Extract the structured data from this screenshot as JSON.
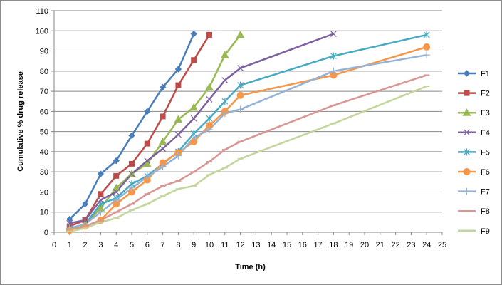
{
  "chart_data": {
    "type": "line",
    "xlabel": "Time (h)",
    "ylabel": "Cumulative % drug release",
    "xlim": [
      0,
      25
    ],
    "ylim": [
      0,
      110
    ],
    "xticks": [
      "0",
      "1",
      "2",
      "3",
      "4",
      "5",
      "6",
      "7",
      "8",
      "9",
      "10",
      "11",
      "12",
      "13",
      "14",
      "15",
      "16",
      "17",
      "18",
      "19",
      "20",
      "21",
      "22",
      "23",
      "24",
      "25"
    ],
    "yticks": [
      "0",
      "10",
      "20",
      "30",
      "40",
      "50",
      "60",
      "70",
      "80",
      "90",
      "100",
      "110"
    ],
    "grid": "horizontal",
    "legend_position": "right",
    "series": [
      {
        "name": "F1",
        "color": "#4a7ebb",
        "marker": "diamond",
        "points": [
          [
            1,
            6.5
          ],
          [
            2,
            14
          ],
          [
            3,
            29
          ],
          [
            4,
            35.5
          ],
          [
            5,
            48
          ],
          [
            6,
            60
          ],
          [
            7,
            72
          ],
          [
            8,
            81
          ],
          [
            9,
            98.5
          ]
        ]
      },
      {
        "name": "F2",
        "color": "#be4b48",
        "marker": "square",
        "points": [
          [
            1,
            3
          ],
          [
            2,
            6
          ],
          [
            3,
            19
          ],
          [
            4,
            28
          ],
          [
            5,
            34
          ],
          [
            6,
            44
          ],
          [
            7,
            57.5
          ],
          [
            8,
            73
          ],
          [
            9,
            85.5
          ],
          [
            10,
            98
          ]
        ]
      },
      {
        "name": "F3",
        "color": "#98b954",
        "marker": "triangle",
        "points": [
          [
            1,
            1.5
          ],
          [
            2,
            4
          ],
          [
            3,
            12
          ],
          [
            4,
            22
          ],
          [
            5,
            29
          ],
          [
            6,
            34
          ],
          [
            7,
            45
          ],
          [
            8,
            56
          ],
          [
            9,
            62
          ],
          [
            10,
            72
          ],
          [
            11,
            88
          ],
          [
            12,
            98
          ]
        ]
      },
      {
        "name": "F4",
        "color": "#7d60a0",
        "marker": "x",
        "points": [
          [
            1,
            4.5
          ],
          [
            2,
            6
          ],
          [
            3,
            16
          ],
          [
            4,
            20
          ],
          [
            5,
            29
          ],
          [
            6,
            35.5
          ],
          [
            7,
            41.5
          ],
          [
            8,
            48.5
          ],
          [
            9,
            56.5
          ],
          [
            10,
            66
          ],
          [
            11,
            75.5
          ],
          [
            12,
            81.5
          ],
          [
            18,
            98.5
          ]
        ]
      },
      {
        "name": "F5",
        "color": "#46aac5",
        "marker": "asterisk",
        "points": [
          [
            1,
            2
          ],
          [
            2,
            4
          ],
          [
            3,
            14
          ],
          [
            4,
            17
          ],
          [
            5,
            24
          ],
          [
            6,
            28
          ],
          [
            7,
            34
          ],
          [
            8,
            40
          ],
          [
            9,
            49
          ],
          [
            10,
            56.5
          ],
          [
            11,
            65
          ],
          [
            12,
            73
          ],
          [
            18,
            87.5
          ],
          [
            24,
            98
          ]
        ]
      },
      {
        "name": "F6",
        "color": "#f79646",
        "marker": "circle",
        "points": [
          [
            1,
            1
          ],
          [
            2,
            3
          ],
          [
            3,
            6
          ],
          [
            4,
            14
          ],
          [
            5,
            20
          ],
          [
            6,
            26
          ],
          [
            7,
            34.5
          ],
          [
            8,
            39.5
          ],
          [
            9,
            45
          ],
          [
            10,
            53
          ],
          [
            11,
            60
          ],
          [
            12,
            68
          ],
          [
            18,
            78
          ],
          [
            24,
            92
          ]
        ]
      },
      {
        "name": "F7",
        "color": "#95b3d7",
        "marker": "plus",
        "points": [
          [
            1,
            2
          ],
          [
            2,
            4
          ],
          [
            3,
            10
          ],
          [
            4,
            16
          ],
          [
            5,
            22
          ],
          [
            6,
            27.5
          ],
          [
            7,
            32.5
          ],
          [
            8,
            38
          ],
          [
            9,
            47
          ],
          [
            10,
            51
          ],
          [
            11,
            59
          ],
          [
            12,
            61
          ],
          [
            18,
            80
          ],
          [
            24,
            88
          ]
        ]
      },
      {
        "name": "F8",
        "color": "#d99694",
        "marker": "dash",
        "points": [
          [
            1,
            0.5
          ],
          [
            2,
            3
          ],
          [
            3,
            6
          ],
          [
            4,
            10
          ],
          [
            5,
            14
          ],
          [
            6,
            19
          ],
          [
            7,
            23
          ],
          [
            8,
            25.5
          ],
          [
            9,
            30
          ],
          [
            10,
            35
          ],
          [
            11,
            41
          ],
          [
            12,
            45
          ],
          [
            18,
            63
          ],
          [
            24,
            78
          ]
        ]
      },
      {
        "name": "F9",
        "color": "#c3d69b",
        "marker": "dash",
        "points": [
          [
            1,
            0.5
          ],
          [
            2,
            2
          ],
          [
            3,
            5
          ],
          [
            4,
            7
          ],
          [
            5,
            11
          ],
          [
            6,
            14
          ],
          [
            7,
            18
          ],
          [
            8,
            21.5
          ],
          [
            9,
            23
          ],
          [
            10,
            28.5
          ],
          [
            11,
            32
          ],
          [
            12,
            36.5
          ],
          [
            18,
            54
          ],
          [
            24,
            72.5
          ]
        ]
      }
    ]
  }
}
